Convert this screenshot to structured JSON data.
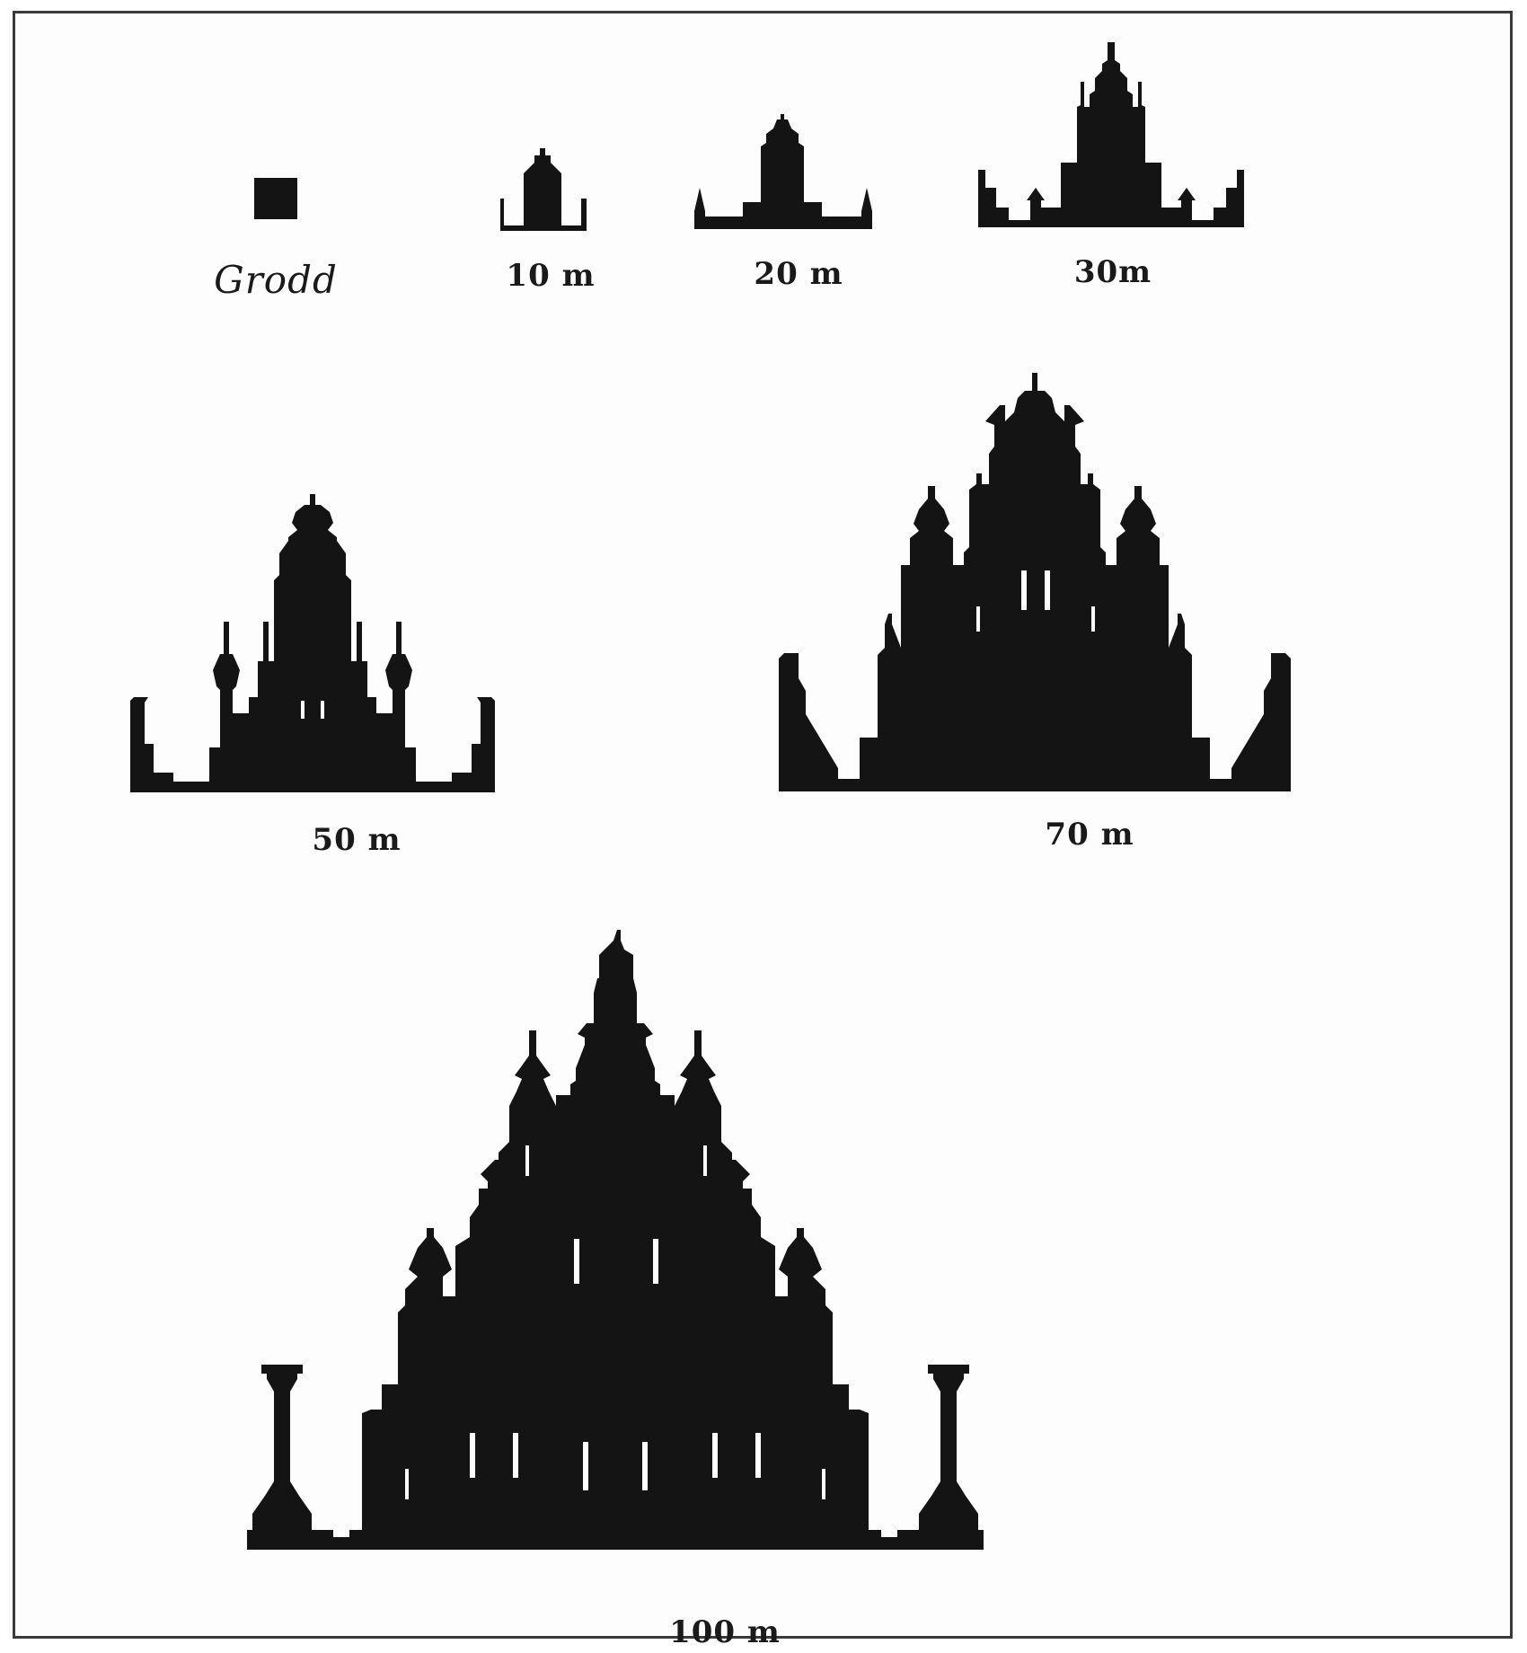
{
  "ink_color": "#141414",
  "stages": [
    {
      "id": "grodd",
      "label": "Grodd"
    },
    {
      "id": "10m",
      "label": "10 m"
    },
    {
      "id": "20m",
      "label": "20 m"
    },
    {
      "id": "30m",
      "label": "30m"
    },
    {
      "id": "50m",
      "label": "50 m"
    },
    {
      "id": "70m",
      "label": "70 m"
    },
    {
      "id": "100m",
      "label": "100 m"
    }
  ]
}
